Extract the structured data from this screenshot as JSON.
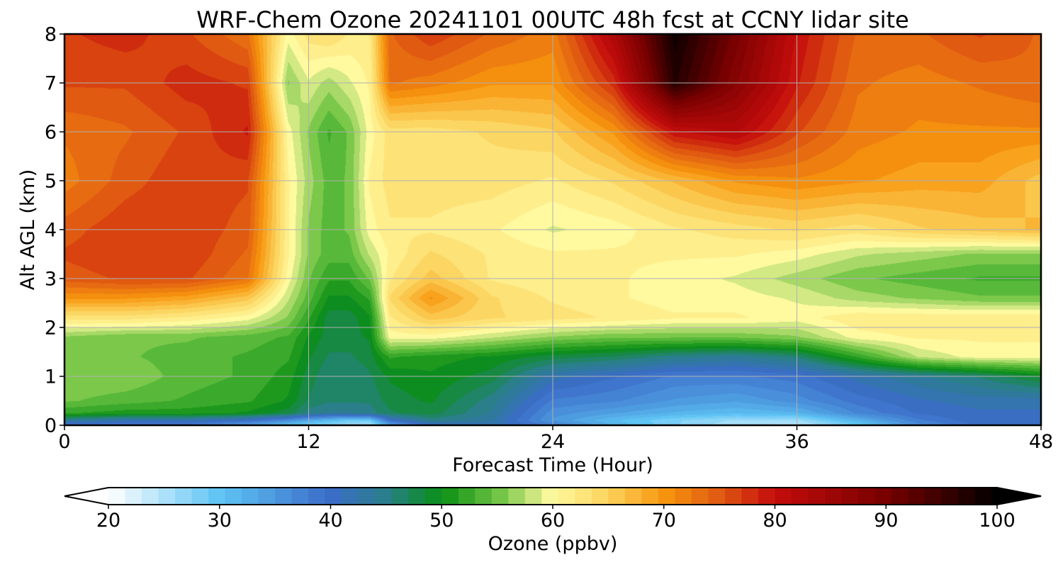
{
  "chart_data": {
    "type": "heatmap",
    "title": "WRF-Chem Ozone  20241101 00UTC 48h fcst at CCNY lidar site",
    "xlabel": "Forecast Time (Hour)",
    "ylabel": "Alt AGL (km)",
    "xlim": [
      0,
      48
    ],
    "ylim": [
      0,
      8
    ],
    "x_ticks": [
      0,
      12,
      24,
      36,
      48
    ],
    "y_ticks": [
      0,
      1,
      2,
      3,
      4,
      5,
      6,
      7,
      8
    ],
    "grid": true,
    "x_hours": [
      0,
      3,
      6,
      9,
      11,
      12,
      13,
      14,
      15,
      16,
      18,
      21,
      24,
      27,
      30,
      33,
      36,
      39,
      42,
      45,
      48
    ],
    "z_km": [
      0,
      0.1,
      0.25,
      0.5,
      1.0,
      1.4,
      1.8,
      2.2,
      2.6,
      3.0,
      3.5,
      4.0,
      5.0,
      6.0,
      7.0,
      8.0
    ],
    "ozone_ppbv": [
      [
        38,
        38,
        38,
        34,
        30,
        28,
        27,
        26,
        25,
        33,
        40,
        42,
        38,
        32,
        28,
        25,
        24,
        29,
        36,
        40,
        40
      ],
      [
        44,
        42,
        42,
        40,
        36,
        33,
        31,
        29,
        29,
        40,
        45,
        43,
        35,
        31,
        28,
        26,
        26,
        32,
        38,
        41,
        41
      ],
      [
        52,
        51,
        51,
        50,
        48,
        45,
        44,
        44,
        45,
        47,
        48,
        44,
        36,
        34,
        32,
        31,
        32,
        37,
        40,
        41,
        41
      ],
      [
        55,
        54,
        53,
        52,
        50,
        47,
        46,
        46,
        46,
        48,
        49,
        45,
        38,
        37,
        35,
        34,
        36,
        39,
        41,
        42,
        42
      ],
      [
        56,
        56,
        54,
        53,
        51,
        48,
        46,
        46,
        47,
        49,
        50,
        48,
        42,
        40,
        38,
        38,
        39,
        42,
        44,
        46,
        49
      ],
      [
        56,
        55,
        54,
        53,
        52,
        49,
        47,
        47,
        48,
        52,
        51,
        50,
        48,
        47,
        45,
        44,
        46,
        52,
        58,
        60,
        60
      ],
      [
        56,
        55,
        55,
        54,
        53,
        50,
        48,
        48,
        49,
        60,
        60,
        58,
        56,
        55,
        55,
        55,
        56,
        60,
        61,
        61,
        61
      ],
      [
        63,
        63,
        62,
        60,
        56,
        52,
        48,
        48,
        50,
        62,
        66,
        64,
        63,
        62,
        61,
        61,
        60,
        62,
        62,
        62,
        62
      ],
      [
        70,
        70,
        69,
        66,
        58,
        54,
        50,
        50,
        52,
        64,
        70,
        64,
        62,
        61,
        60,
        60,
        59,
        57,
        56,
        55,
        55
      ],
      [
        75,
        76,
        76,
        73,
        60,
        55,
        52,
        52,
        55,
        62,
        66,
        62,
        61,
        61,
        60,
        59,
        57,
        55,
        54,
        53,
        53
      ],
      [
        76,
        77,
        77,
        74,
        61,
        56,
        54,
        54,
        58,
        61,
        64,
        62,
        61,
        61,
        61,
        61,
        60,
        58,
        57,
        56,
        56
      ],
      [
        75,
        77,
        77,
        75,
        61,
        56,
        54,
        55,
        60,
        62,
        62,
        61,
        59,
        60,
        62,
        63,
        64,
        63,
        65,
        66,
        67
      ],
      [
        72,
        75,
        77,
        76,
        61,
        57,
        54,
        55,
        61,
        63,
        63,
        63,
        62,
        64,
        67,
        70,
        71,
        70,
        69,
        69,
        66
      ],
      [
        73,
        74,
        76,
        79,
        60,
        56,
        53,
        55,
        60,
        63,
        63,
        64,
        65,
        70,
        80,
        82,
        76,
        72,
        71,
        71,
        71
      ],
      [
        76,
        76,
        78,
        77,
        56,
        59,
        57,
        59,
        61,
        73,
        72,
        70,
        70,
        78,
        97,
        88,
        79,
        73,
        72,
        73,
        74
      ],
      [
        77,
        78,
        76,
        73,
        60,
        63,
        64,
        62,
        62,
        74,
        77,
        74,
        72,
        83,
        99,
        90,
        80,
        74,
        74,
        76,
        74
      ]
    ],
    "colorbar": {
      "label": "Ozone  (ppbv)",
      "min": 20,
      "max": 100,
      "ticks": [
        20,
        30,
        40,
        50,
        60,
        70,
        80,
        90,
        100
      ],
      "extend": "both",
      "stops": [
        [
          20,
          "#ffffff"
        ],
        [
          30,
          "#5ec4f4"
        ],
        [
          40,
          "#3b6cc8"
        ],
        [
          45,
          "#2a7f8a"
        ],
        [
          50,
          "#0a8f14"
        ],
        [
          55,
          "#6cc242"
        ],
        [
          60,
          "#fffaa0"
        ],
        [
          65,
          "#fcd25c"
        ],
        [
          70,
          "#f7960e"
        ],
        [
          75,
          "#e05a12"
        ],
        [
          80,
          "#c40c0c"
        ],
        [
          90,
          "#780000"
        ],
        [
          100,
          "#000000"
        ]
      ]
    }
  }
}
